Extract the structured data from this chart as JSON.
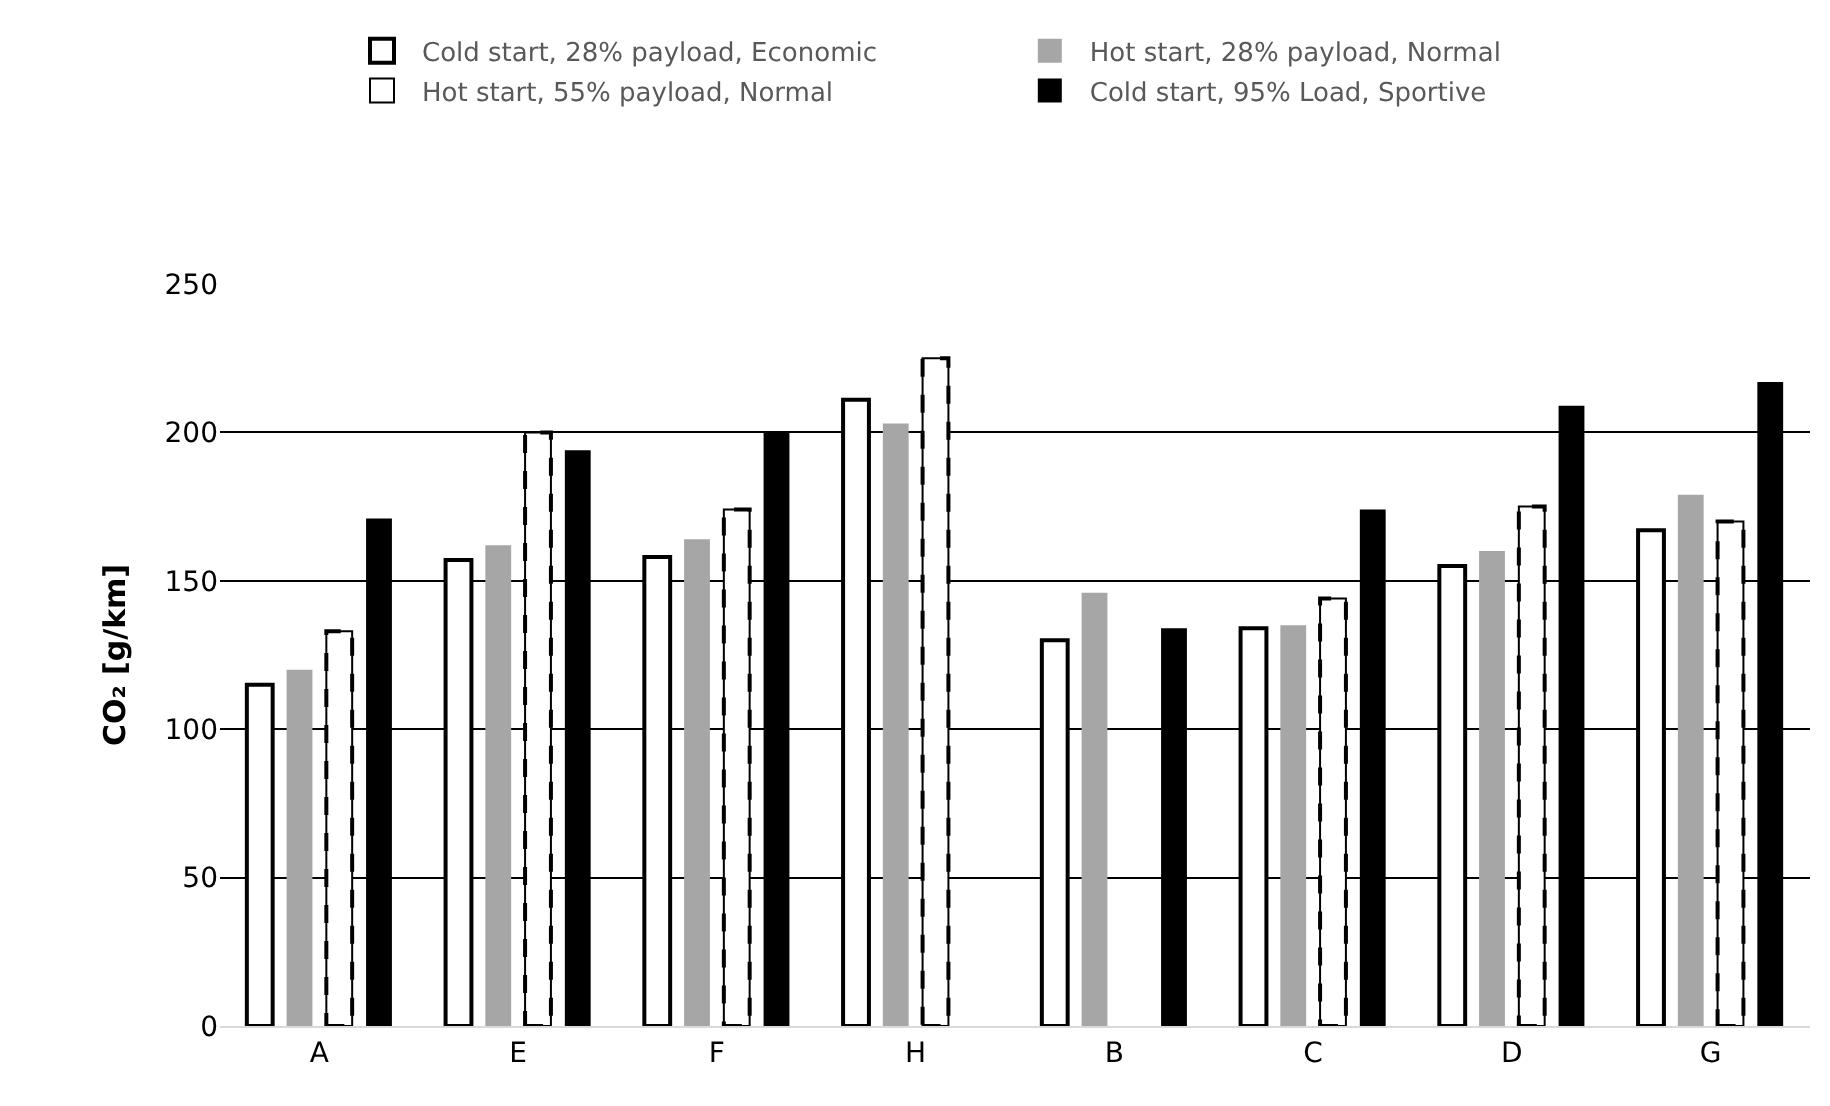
{
  "chart_data": {
    "type": "bar",
    "ylabel": "CO₂ [g/km]",
    "categories": [
      "A",
      "E",
      "F",
      "H",
      "B",
      "C",
      "D",
      "G"
    ],
    "series": [
      {
        "name": "Cold start, 28% payload, Economic",
        "color": "#ffffff",
        "line_style": "solid",
        "values": [
          115,
          157,
          158,
          211,
          130,
          134,
          155,
          167
        ]
      },
      {
        "name": "Hot start, 28% payload, Normal",
        "color": "#a6a6a6",
        "values": [
          120,
          162,
          164,
          203,
          146,
          135,
          160,
          179
        ]
      },
      {
        "name": "Hot start, 55% payload, Normal",
        "color": "#ffffff",
        "line_style": "dashed",
        "values": [
          133,
          200,
          174,
          225,
          null,
          144,
          175,
          170
        ]
      },
      {
        "name": "Cold start, 95% Load, Sportive",
        "color": "#000000",
        "values": [
          171,
          194,
          200,
          null,
          134,
          174,
          209,
          217
        ]
      }
    ],
    "ylim": [
      0,
      250
    ],
    "yticks": [
      0,
      50,
      100,
      150,
      200,
      250
    ],
    "grid": "y",
    "legend": "top"
  }
}
